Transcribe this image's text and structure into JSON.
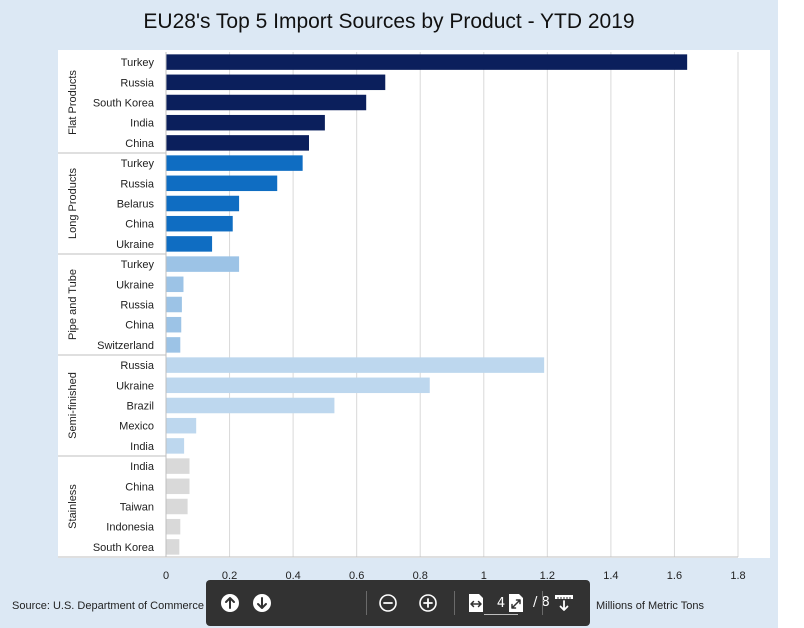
{
  "chart_data": {
    "type": "bar",
    "orientation": "horizontal",
    "title": "EU28's Top 5 Import Sources by Product -  YTD 2019",
    "xlabel": "Millions of Metric Tons",
    "xlim": [
      0,
      1.8
    ],
    "xticks": [
      "0",
      "0.2",
      "0.4",
      "0.6",
      "0.8",
      "1",
      "1.2",
      "1.4",
      "1.6",
      "1.8"
    ],
    "grid": true,
    "groups": [
      {
        "name": "Flat Products",
        "color": "#0b1f5c",
        "categories": [
          "Turkey",
          "Russia",
          "South Korea",
          "India",
          "China"
        ],
        "values": [
          1.64,
          0.69,
          0.63,
          0.5,
          0.45
        ]
      },
      {
        "name": "Long Products",
        "color": "#0f6dc2",
        "categories": [
          "Turkey",
          "Russia",
          "Belarus",
          "China",
          "Ukraine"
        ],
        "values": [
          0.43,
          0.35,
          0.23,
          0.21,
          0.145
        ]
      },
      {
        "name": "Pipe and Tube",
        "color": "#9cc3e6",
        "categories": [
          "Turkey",
          "Ukraine",
          "Russia",
          "China",
          "Switzerland"
        ],
        "values": [
          0.23,
          0.055,
          0.05,
          0.048,
          0.045
        ]
      },
      {
        "name": "Semi-finished",
        "color": "#bdd7ee",
        "categories": [
          "Russia",
          "Ukraine",
          "Brazil",
          "Mexico",
          "India"
        ],
        "values": [
          1.19,
          0.83,
          0.53,
          0.095,
          0.057
        ]
      },
      {
        "name": "Stainless",
        "color": "#d9d9d9",
        "categories": [
          "India",
          "China",
          "Taiwan",
          "Indonesia",
          "South Korea"
        ],
        "values": [
          0.074,
          0.074,
          0.068,
          0.045,
          0.042
        ]
      }
    ]
  },
  "footer": {
    "source": "Source: U.S. Department of Commerce"
  },
  "viewer_toolbar": {
    "page_current": "4",
    "page_total": "/ 8",
    "icons": [
      "arrow-up-icon",
      "arrow-down-icon",
      "zoom-out-icon",
      "zoom-in-icon",
      "fit-width-icon",
      "fit-page-icon",
      "download-icon"
    ],
    "colors": {
      "background": "#323232",
      "foreground": "#ffffff"
    }
  }
}
